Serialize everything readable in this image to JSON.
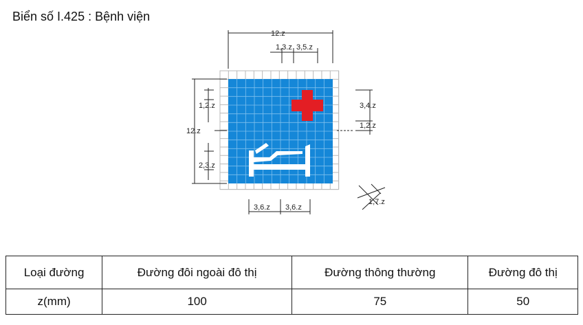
{
  "title": "Biển số I.425 : Bệnh viện",
  "sign_name": "Bệnh viện",
  "colors": {
    "sign_background": "#1587d8",
    "cross": "#e31e24",
    "grid": "#b8b8b8",
    "bed": "#ffffff"
  },
  "icons": [
    "red-cross-icon",
    "hospital-bed-icon"
  ],
  "dimensions": {
    "top_width": "12.z",
    "top_a": "1,3.z",
    "top_b": "3,5.z",
    "left_height": "12.z",
    "left_upper": "1,2.z",
    "left_lower": "2,3.z",
    "right_cross": "3,4.z",
    "right_gap": "1,2.z",
    "bottom_a": "3,6.z",
    "bottom_b": "3,6.z",
    "corner": "1,7.z"
  },
  "table": {
    "headers": [
      "Loại đường",
      "Đường đôi ngoài đô thị",
      "Đường thông thường",
      "Đường đô thị"
    ],
    "rows": [
      [
        "z(mm)",
        "100",
        "75",
        "50"
      ]
    ]
  }
}
